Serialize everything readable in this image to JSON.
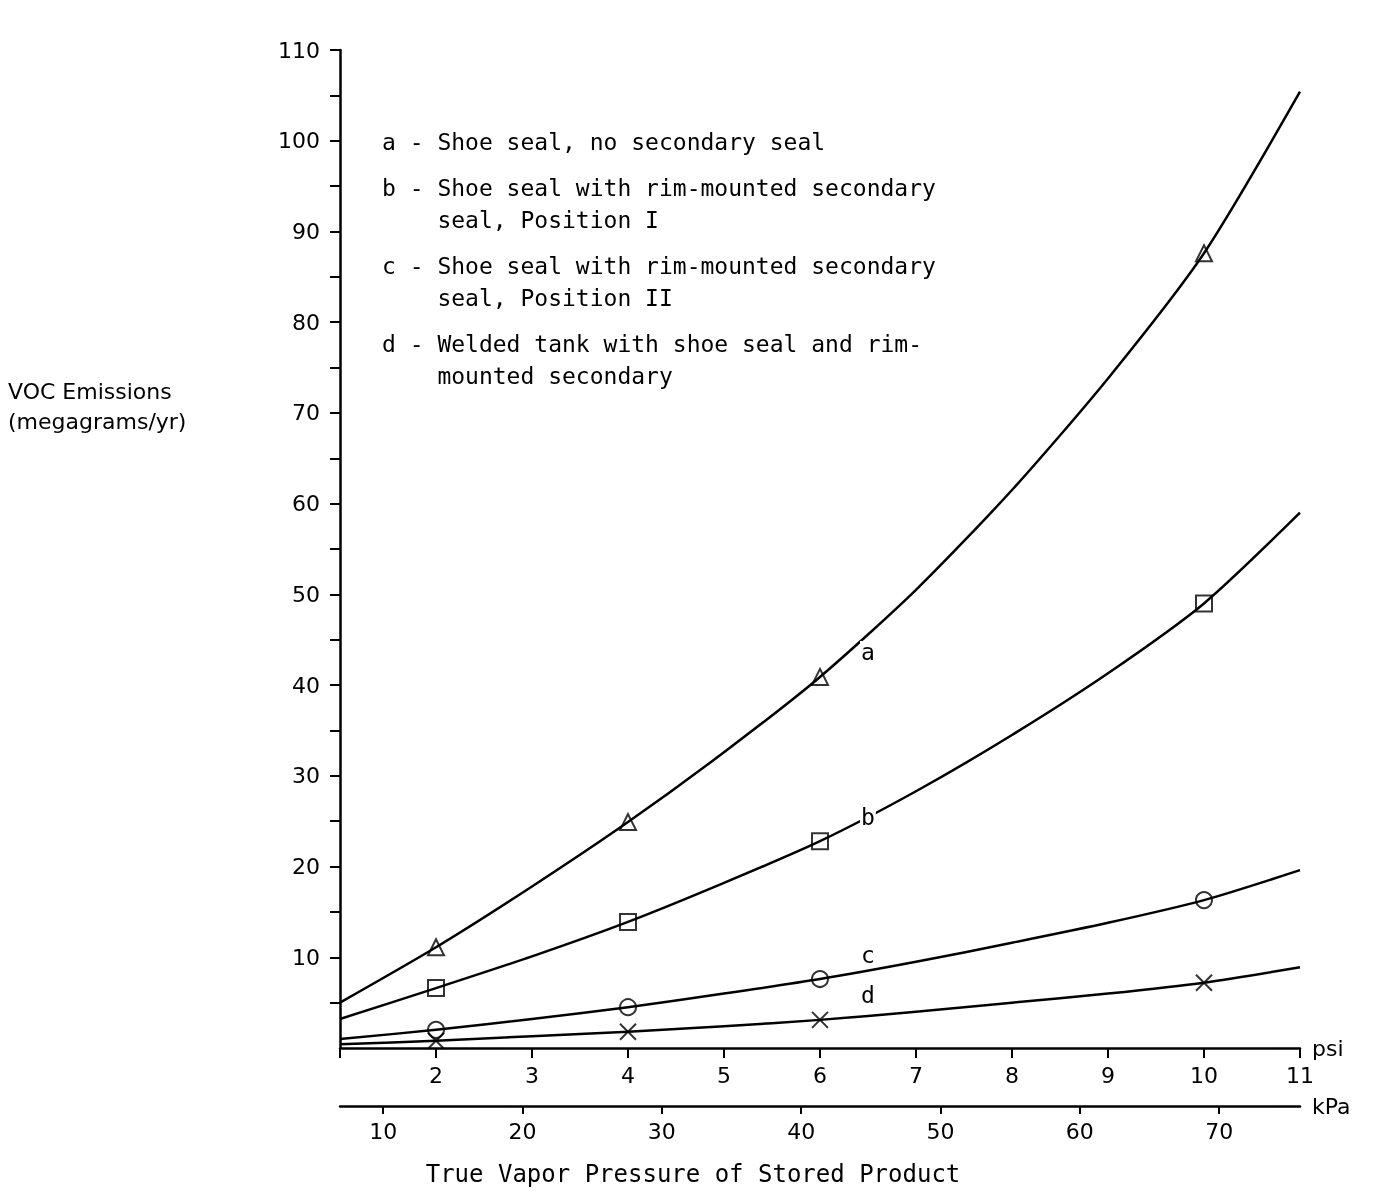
{
  "chart_data": {
    "type": "line",
    "title": "True Vapor Pressure of Stored Product",
    "xlabel": "psi",
    "x2label": "kPa",
    "ylabel": "VOC Emissions\n(megagrams/yr)",
    "xlim": [
      1,
      11
    ],
    "xticks": [
      {
        "value": 1,
        "label": null
      },
      2,
      3,
      4,
      5,
      6,
      7,
      8,
      9,
      10,
      11
    ],
    "x2lim": [
      6.9,
      75.8
    ],
    "x2ticks": [
      10,
      20,
      30,
      40,
      50,
      60,
      70
    ],
    "ylim": [
      0,
      110
    ],
    "yticks": [
      {
        "value": 5,
        "label": null
      },
      10,
      {
        "value": 15,
        "label": null
      },
      20,
      {
        "value": 25,
        "label": null
      },
      30,
      {
        "value": 35,
        "label": null
      },
      40,
      {
        "value": 45,
        "label": null
      },
      50,
      {
        "value": 55,
        "label": null
      },
      60,
      {
        "value": 65,
        "label": null
      },
      70,
      {
        "value": 75,
        "label": null
      },
      80,
      {
        "value": 85,
        "label": null
      },
      90,
      {
        "value": 95,
        "label": null
      },
      100,
      {
        "value": 105,
        "label": null
      },
      110
    ],
    "grid": false,
    "legend": false,
    "line_style": "solid",
    "series": [
      {
        "name": "a",
        "marker": "none",
        "color": "#000000",
        "x": [
          1,
          2,
          3,
          4,
          5,
          6,
          7,
          8,
          9,
          10,
          11
        ],
        "values": [
          5.0,
          11.1,
          17.8,
          24.9,
          32.6,
          40.9,
          50.5,
          61.5,
          73.8,
          87.6,
          105.4
        ]
      },
      {
        "name": "b",
        "marker": "none",
        "color": "#000000",
        "x": [
          1,
          2,
          3,
          4,
          5,
          6,
          7,
          8,
          9,
          10,
          11
        ],
        "values": [
          3.2,
          6.6,
          10.1,
          13.9,
          18.2,
          22.8,
          28.3,
          34.5,
          41.3,
          49.0,
          59.0
        ]
      },
      {
        "name": "c",
        "marker": "none",
        "color": "#000000",
        "x": [
          1,
          2,
          3,
          4,
          5,
          6,
          7,
          8,
          9,
          10,
          11
        ],
        "values": [
          1.0,
          2.0,
          3.2,
          4.5,
          6.0,
          7.6,
          9.5,
          11.6,
          13.8,
          16.3,
          19.6
        ]
      },
      {
        "name": "d",
        "marker": "none",
        "color": "#000000",
        "x": [
          1,
          2,
          3,
          4,
          5,
          6,
          7,
          8,
          9,
          10,
          11
        ],
        "values": [
          0.4,
          0.8,
          1.3,
          1.8,
          2.4,
          3.1,
          4.0,
          5.0,
          6.0,
          7.2,
          8.9
        ]
      },
      {
        "type": "scatter",
        "marker": "triangle",
        "color": "#000000",
        "x": [
          2,
          4,
          6,
          10
        ],
        "values": [
          11.1,
          24.9,
          40.9,
          87.6
        ]
      },
      {
        "type": "scatter",
        "marker": "square",
        "color": "#000000",
        "x": [
          2,
          4,
          6,
          10
        ],
        "values": [
          6.6,
          13.9,
          22.8,
          49.0
        ]
      },
      {
        "type": "scatter",
        "marker": "circle",
        "color": "#000000",
        "x": [
          2,
          4,
          6,
          10
        ],
        "values": [
          2.0,
          4.5,
          7.6,
          16.3
        ]
      },
      {
        "type": "scatter",
        "marker": "cross",
        "color": "#000000",
        "x": [
          2,
          4,
          6,
          10
        ],
        "values": [
          0.8,
          1.8,
          3.1,
          7.2
        ]
      }
    ],
    "annotations": [
      "a - Shoe seal, no secondary seal",
      "b - Shoe seal with rim-mounted secondary\n    seal, Position I",
      "c - Shoe seal with rim-mounted secondary\n    seal, Position II",
      "d - Welded tank with shoe seal and rim-\n    mounted secondary"
    ]
  }
}
